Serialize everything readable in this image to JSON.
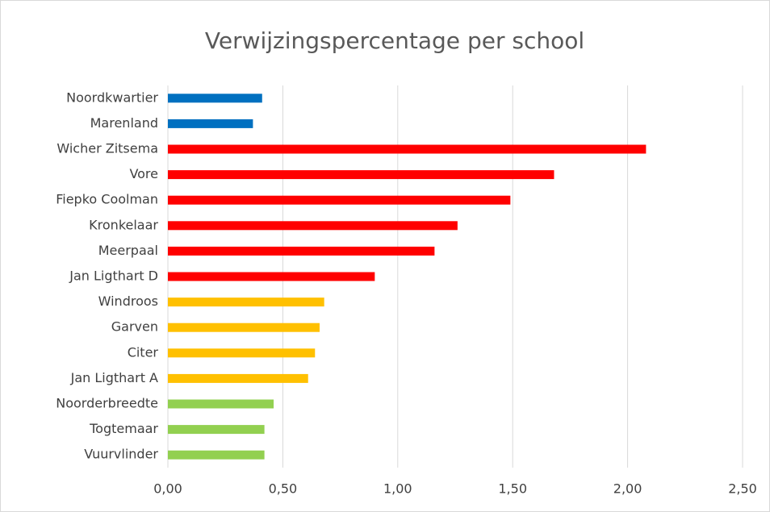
{
  "chart_data": {
    "type": "barh",
    "title": "Verwijzingspercentage per school",
    "categories": [
      "Noordkwartier",
      "Marenland",
      "Wicher Zitsema",
      "Vore",
      "Fiepko Coolman",
      "Kronkelaar",
      "Meerpaal",
      "Jan Ligthart D",
      "Windroos",
      "Garven",
      "Citer",
      "Jan Ligthart A",
      "Noorderbreedte",
      "Togtemaar",
      "Vuurvlinder"
    ],
    "values": [
      0.41,
      0.37,
      2.08,
      1.68,
      1.49,
      1.26,
      1.16,
      0.9,
      0.68,
      0.66,
      0.64,
      0.61,
      0.46,
      0.42,
      0.42
    ],
    "colors": [
      "#0070c0",
      "#0070c0",
      "#ff0000",
      "#ff0000",
      "#ff0000",
      "#ff0000",
      "#ff0000",
      "#ff0000",
      "#ffc000",
      "#ffc000",
      "#ffc000",
      "#ffc000",
      "#92d050",
      "#92d050",
      "#92d050"
    ],
    "xlim": [
      0,
      2.5
    ],
    "xticks": [
      {
        "value": 0,
        "label": "0,00"
      },
      {
        "value": 0.5,
        "label": "0,50"
      },
      {
        "value": 1,
        "label": "1,00"
      },
      {
        "value": 1.5,
        "label": "1,50"
      },
      {
        "value": 2,
        "label": "2,00"
      },
      {
        "value": 2.5,
        "label": "2,50"
      }
    ],
    "grid": true
  }
}
